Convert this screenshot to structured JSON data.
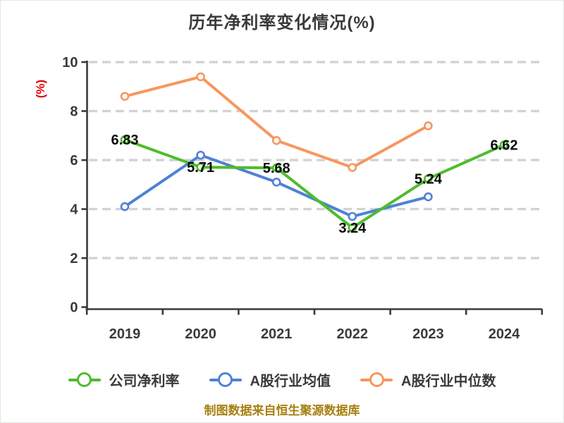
{
  "title": "历年净利率变化情况(%)",
  "y_axis_label": "(%)",
  "caption": "制图数据来自恒生聚源数据库",
  "chart_data": {
    "type": "line",
    "title": "历年净利率变化情况(%)",
    "categories": [
      "2019",
      "2020",
      "2021",
      "2022",
      "2023",
      "2024"
    ],
    "series": [
      {
        "name": "公司净利率",
        "color": "#4dbd2d",
        "marker": "circle-white-fill",
        "values": [
          6.83,
          5.71,
          5.68,
          3.24,
          5.24,
          6.62
        ],
        "data_labels": [
          "6.83",
          "5.71",
          "5.68",
          "3.24",
          "5.24",
          "6.62"
        ]
      },
      {
        "name": "A股行业均值",
        "color": "#4f81d8",
        "marker": "circle-white-fill",
        "values": [
          4.1,
          6.2,
          5.1,
          3.7,
          4.5,
          null
        ],
        "data_labels": null
      },
      {
        "name": "A股行业中位数",
        "color": "#f7965e",
        "marker": "circle-white-fill",
        "values": [
          8.6,
          9.4,
          6.8,
          5.7,
          7.4,
          null
        ],
        "data_labels": null
      }
    ],
    "ylabel": "(%)",
    "ylim": [
      0,
      10
    ],
    "yticks": [
      0,
      2,
      4,
      6,
      8,
      10
    ],
    "grid": "horizontal-dashed",
    "legend_position": "bottom"
  },
  "colors": {
    "background": "#ffffff",
    "title_text": "#3a3a3a",
    "axis": "#3a3a3a",
    "tick_label": "#3a3a3a",
    "grid_line": "#d2d2d2",
    "data_label": "#0a0a0a",
    "y_axis_label_text": "#e60000",
    "caption_text": "#a6800e"
  }
}
